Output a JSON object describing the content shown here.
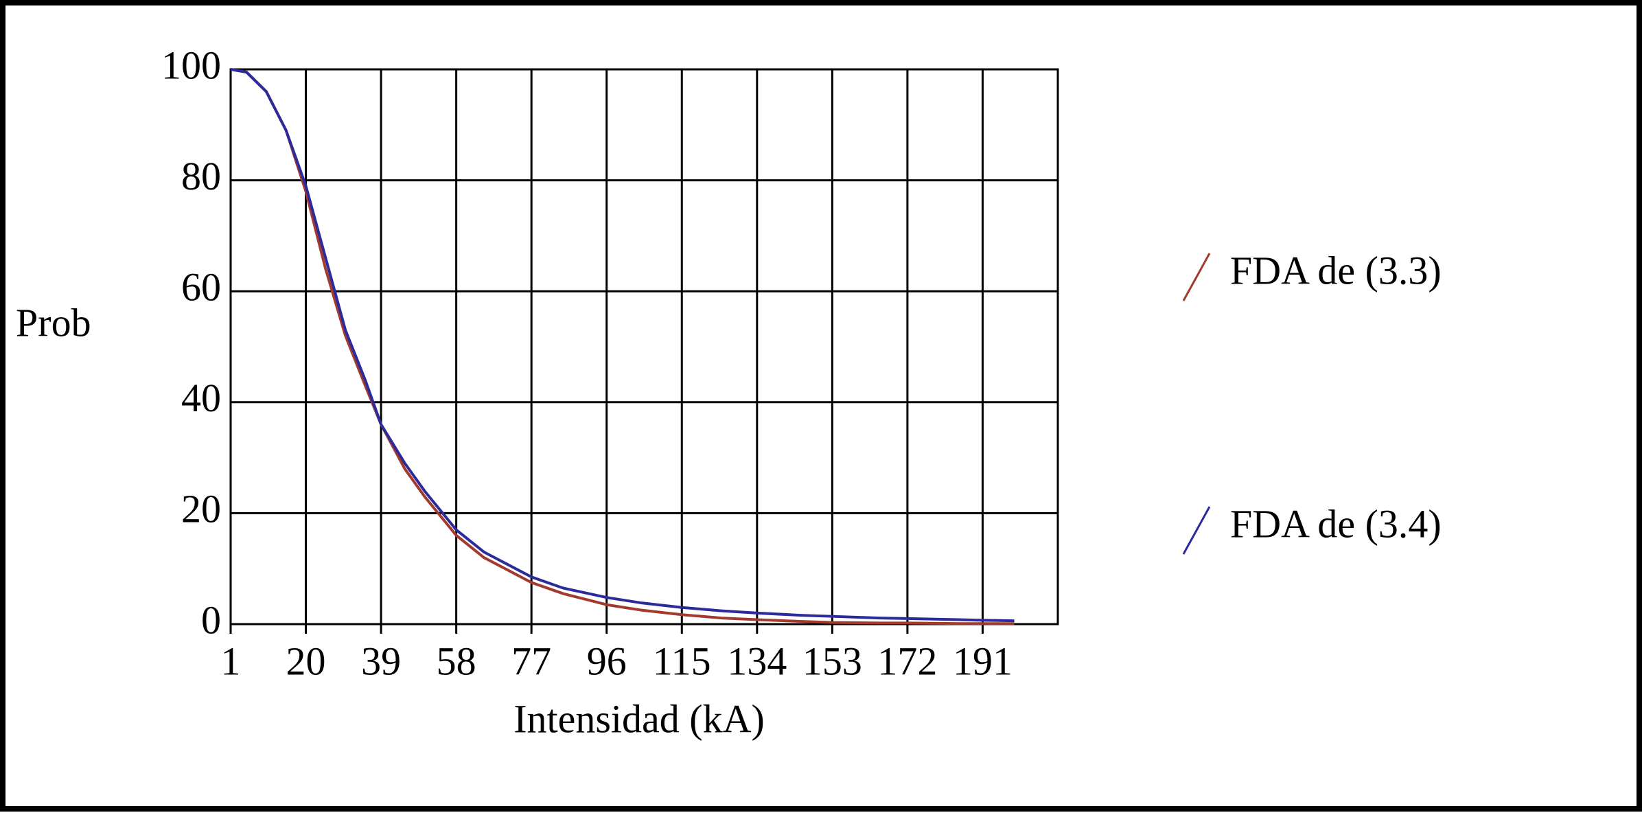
{
  "chart_data": {
    "type": "line",
    "x_label": "Intensidad (kA)",
    "y_label": "Prob",
    "x": [
      1,
      5,
      10,
      15,
      20,
      25,
      30,
      35,
      39,
      45,
      50,
      58,
      65,
      77,
      85,
      96,
      105,
      115,
      125,
      134,
      145,
      153,
      165,
      172,
      185,
      191,
      199
    ],
    "series": [
      {
        "name": "FDA de (3.3)",
        "color": "#a33a2e",
        "values": [
          100,
          99.5,
          96,
          89,
          78,
          64,
          52,
          43,
          36,
          28,
          23,
          16,
          12,
          7.5,
          5.5,
          3.5,
          2.5,
          1.7,
          1.1,
          0.8,
          0.5,
          0.3,
          0.2,
          0.2,
          0.1,
          0.1,
          0.1
        ]
      },
      {
        "name": "FDA de (3.4)",
        "color": "#2b2b9c",
        "values": [
          100,
          99.5,
          96,
          89,
          79,
          66,
          53,
          44,
          36,
          29,
          24,
          17,
          13,
          8.5,
          6.5,
          4.8,
          3.8,
          3,
          2.4,
          2,
          1.6,
          1.4,
          1.1,
          1,
          0.8,
          0.7,
          0.6
        ]
      }
    ],
    "xlim": [
      1,
      210
    ],
    "xticks": [
      1,
      20,
      39,
      58,
      77,
      96,
      115,
      134,
      153,
      172,
      191
    ],
    "ylim": [
      0,
      100
    ],
    "yticks": [
      0,
      20,
      40,
      60,
      80,
      100
    ],
    "grid": true,
    "legend": "right"
  }
}
